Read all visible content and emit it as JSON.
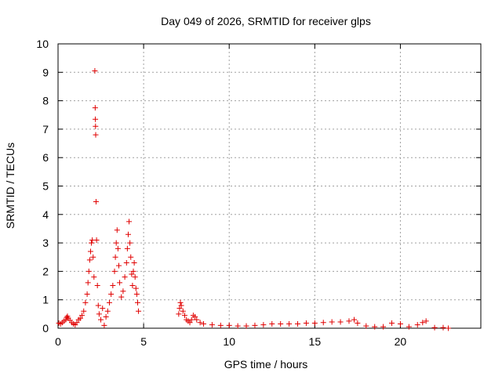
{
  "chart_data": {
    "type": "scatter",
    "title": "Day 049 of 2026, SRMTID for receiver glps",
    "xlabel": "GPS time / hours",
    "ylabel": "SRMTID / TECUs",
    "xlim": [
      0,
      24.7
    ],
    "ylim": [
      0,
      10
    ],
    "xticks": [
      0,
      5,
      10,
      15,
      20
    ],
    "yticks": [
      0,
      1,
      2,
      3,
      4,
      5,
      6,
      7,
      8,
      9,
      10
    ],
    "grid": true,
    "marker": "+",
    "colors": {
      "series": "#e00000",
      "grid": "#a0a0a0",
      "axis": "#000000"
    },
    "series": [
      {
        "name": "SRMTID",
        "points": [
          [
            0.05,
            0.18
          ],
          [
            0.15,
            0.15
          ],
          [
            0.25,
            0.2
          ],
          [
            0.35,
            0.25
          ],
          [
            0.45,
            0.3
          ],
          [
            0.5,
            0.38
          ],
          [
            0.55,
            0.42
          ],
          [
            0.6,
            0.35
          ],
          [
            0.7,
            0.28
          ],
          [
            0.8,
            0.2
          ],
          [
            0.9,
            0.15
          ],
          [
            1.0,
            0.12
          ],
          [
            1.1,
            0.2
          ],
          [
            1.2,
            0.3
          ],
          [
            1.3,
            0.35
          ],
          [
            1.4,
            0.45
          ],
          [
            1.5,
            0.6
          ],
          [
            1.6,
            0.9
          ],
          [
            1.7,
            1.2
          ],
          [
            1.75,
            1.6
          ],
          [
            1.8,
            2.0
          ],
          [
            1.85,
            2.4
          ],
          [
            1.9,
            2.7
          ],
          [
            1.95,
            3.0
          ],
          [
            2.0,
            3.1
          ],
          [
            2.05,
            2.5
          ],
          [
            2.1,
            1.8
          ],
          [
            2.15,
            9.05
          ],
          [
            2.17,
            7.75
          ],
          [
            2.18,
            7.35
          ],
          [
            2.19,
            7.1
          ],
          [
            2.2,
            6.8
          ],
          [
            2.22,
            4.45
          ],
          [
            2.25,
            3.1
          ],
          [
            2.3,
            1.5
          ],
          [
            2.35,
            0.8
          ],
          [
            2.4,
            0.5
          ],
          [
            2.5,
            0.3
          ],
          [
            2.6,
            0.7
          ],
          [
            2.7,
            0.1
          ],
          [
            2.8,
            0.4
          ],
          [
            2.9,
            0.6
          ],
          [
            3.0,
            0.9
          ],
          [
            3.1,
            1.2
          ],
          [
            3.2,
            1.5
          ],
          [
            3.3,
            2.0
          ],
          [
            3.35,
            2.5
          ],
          [
            3.4,
            3.0
          ],
          [
            3.45,
            3.45
          ],
          [
            3.5,
            2.8
          ],
          [
            3.55,
            2.2
          ],
          [
            3.6,
            1.6
          ],
          [
            3.7,
            1.1
          ],
          [
            3.8,
            1.3
          ],
          [
            3.9,
            1.8
          ],
          [
            4.0,
            2.3
          ],
          [
            4.05,
            2.8
          ],
          [
            4.1,
            3.3
          ],
          [
            4.15,
            3.75
          ],
          [
            4.2,
            3.0
          ],
          [
            4.25,
            2.5
          ],
          [
            4.3,
            1.9
          ],
          [
            4.35,
            1.5
          ],
          [
            4.4,
            2.0
          ],
          [
            4.45,
            2.3
          ],
          [
            4.5,
            1.8
          ],
          [
            4.55,
            1.4
          ],
          [
            4.6,
            1.2
          ],
          [
            4.65,
            0.9
          ],
          [
            4.7,
            0.6
          ],
          [
            7.05,
            0.5
          ],
          [
            7.1,
            0.7
          ],
          [
            7.15,
            0.9
          ],
          [
            7.2,
            0.8
          ],
          [
            7.3,
            0.6
          ],
          [
            7.4,
            0.45
          ],
          [
            7.5,
            0.3
          ],
          [
            7.6,
            0.25
          ],
          [
            7.7,
            0.2
          ],
          [
            7.8,
            0.3
          ],
          [
            7.9,
            0.45
          ],
          [
            8.0,
            0.4
          ],
          [
            8.1,
            0.3
          ],
          [
            8.3,
            0.2
          ],
          [
            8.5,
            0.15
          ],
          [
            9.0,
            0.12
          ],
          [
            9.5,
            0.1
          ],
          [
            10.0,
            0.1
          ],
          [
            10.5,
            0.08
          ],
          [
            11.0,
            0.08
          ],
          [
            11.5,
            0.1
          ],
          [
            12.0,
            0.12
          ],
          [
            12.5,
            0.15
          ],
          [
            13.0,
            0.15
          ],
          [
            13.5,
            0.15
          ],
          [
            14.0,
            0.15
          ],
          [
            14.5,
            0.18
          ],
          [
            15.0,
            0.18
          ],
          [
            15.5,
            0.2
          ],
          [
            16.0,
            0.22
          ],
          [
            16.5,
            0.22
          ],
          [
            17.0,
            0.25
          ],
          [
            17.3,
            0.3
          ],
          [
            17.5,
            0.18
          ],
          [
            18.0,
            0.08
          ],
          [
            18.5,
            0.05
          ],
          [
            19.0,
            0.05
          ],
          [
            19.5,
            0.18
          ],
          [
            20.0,
            0.15
          ],
          [
            20.5,
            0.05
          ],
          [
            21.0,
            0.12
          ],
          [
            21.3,
            0.2
          ],
          [
            21.5,
            0.25
          ],
          [
            22.0,
            0.02
          ],
          [
            22.5,
            0.02
          ],
          [
            22.8,
            0.0
          ]
        ]
      }
    ]
  }
}
